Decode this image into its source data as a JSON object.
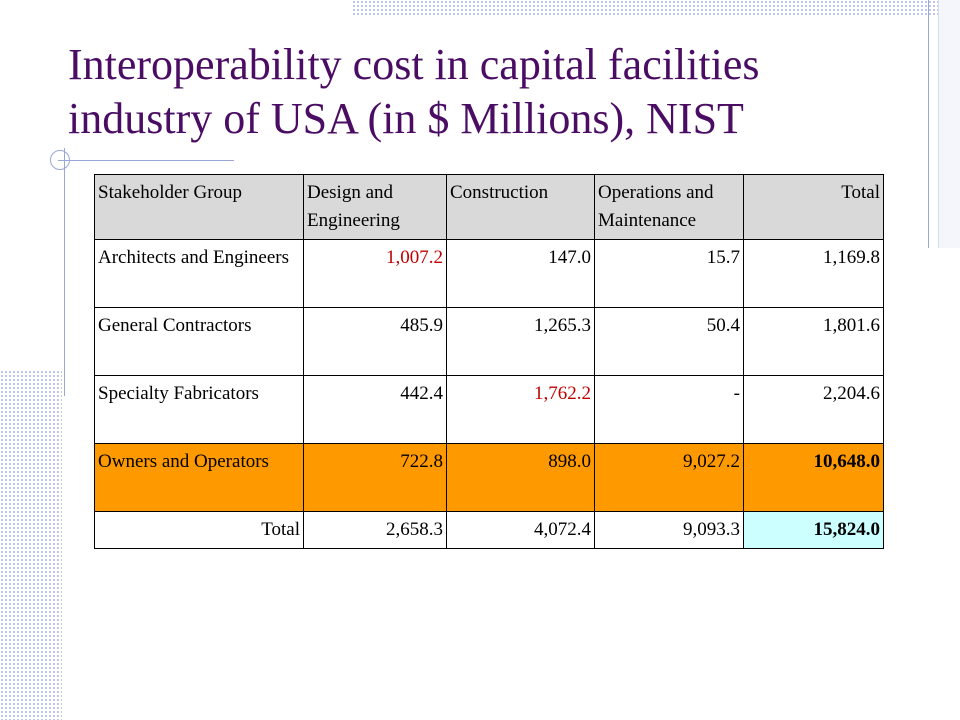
{
  "title": "Interoperability cost in capital facilities industry of USA (in $ Millions), NIST",
  "colors": {
    "title": "#4a0d63",
    "highlight_red": "#c00000",
    "owners_row": "#ff9900",
    "grand_total": "#ccffff",
    "header_bg": "#d9d9d9"
  },
  "table": {
    "headers": [
      "Stakeholder Group",
      "Design and Engineering",
      "Construction",
      "Operations and Maintenance",
      "Total"
    ],
    "rows": [
      {
        "group": "Architects and Engineers",
        "design": "1,007.2",
        "construction": "147.0",
        "operations": "15.7",
        "total": "1,169.8"
      },
      {
        "group": "General Contractors",
        "design": "485.9",
        "construction": "1,265.3",
        "operations": "50.4",
        "total": "1,801.6"
      },
      {
        "group": "Specialty Fabricators",
        "design": "442.4",
        "construction": "1,762.2",
        "operations": "-",
        "total": "2,204.6"
      },
      {
        "group": "Owners and Operators",
        "design": "722.8",
        "construction": "898.0",
        "operations": "9,027.2",
        "total": "10,648.0"
      },
      {
        "group": "Total",
        "design": "2,658.3",
        "construction": "4,072.4",
        "operations": "9,093.3",
        "total": "15,824.0"
      }
    ]
  }
}
